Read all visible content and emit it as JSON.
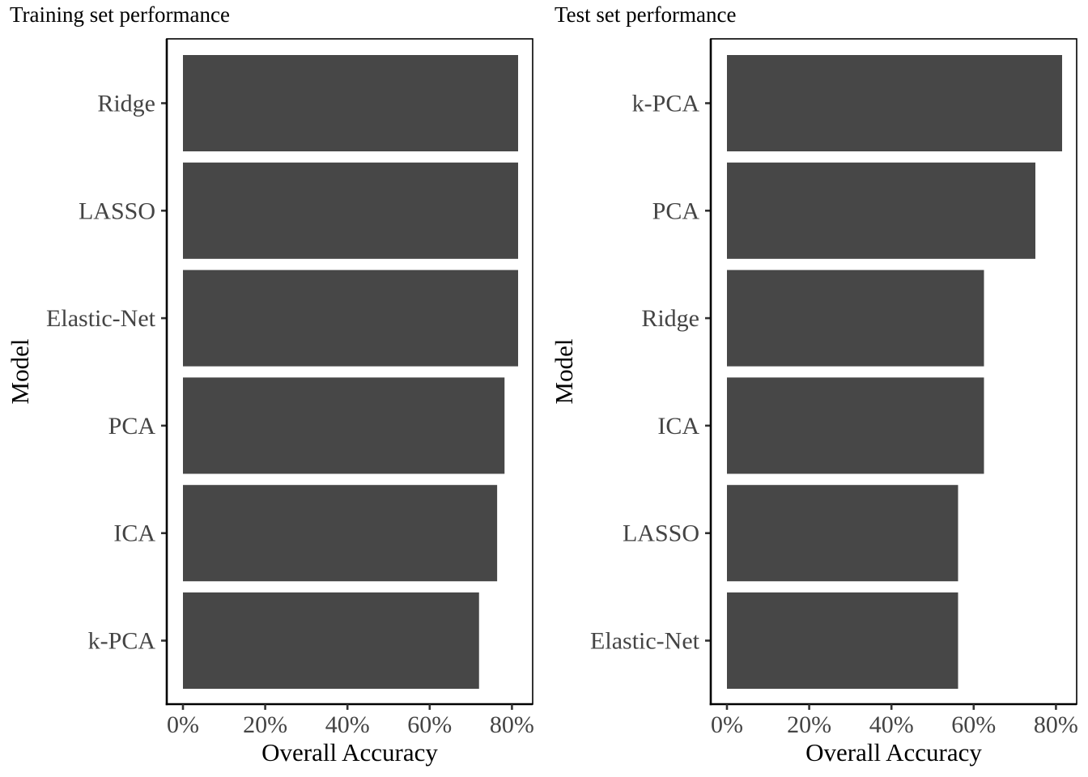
{
  "chart_data": [
    {
      "type": "bar",
      "orientation": "horizontal",
      "title": "Training set performance",
      "xlabel": "Overall Accuracy",
      "ylabel": "Model",
      "categories": [
        "Ridge",
        "LASSO",
        "Elastic-Net",
        "PCA",
        "ICA",
        "k-PCA"
      ],
      "values": [
        81.5,
        81.5,
        81.5,
        78.2,
        76.4,
        72.0
      ],
      "xlim": [
        0,
        85
      ],
      "xticks": [
        0,
        20,
        40,
        60,
        80
      ],
      "xtick_labels": [
        "0%",
        "20%",
        "40%",
        "60%",
        "80%"
      ],
      "grid": false,
      "bar_color": "#474747"
    },
    {
      "type": "bar",
      "orientation": "horizontal",
      "title": "Test set performance",
      "xlabel": "Overall Accuracy",
      "ylabel": "Model",
      "categories": [
        "k-PCA",
        "PCA",
        "Ridge",
        "ICA",
        "LASSO",
        "Elastic-Net"
      ],
      "values": [
        81.5,
        75.0,
        62.5,
        62.5,
        56.2,
        56.2
      ],
      "xlim": [
        0,
        85
      ],
      "xticks": [
        0,
        20,
        40,
        60,
        80
      ],
      "xtick_labels": [
        "0%",
        "20%",
        "40%",
        "60%",
        "80%"
      ],
      "grid": false,
      "bar_color": "#474747"
    }
  ]
}
